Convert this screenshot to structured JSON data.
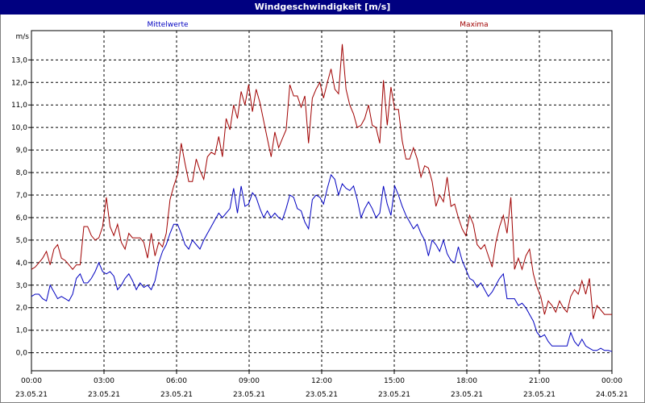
{
  "window": {
    "title": "Windgeschwindigkeit [m/s]"
  },
  "colors": {
    "titlebar": "#000080",
    "mean": "#0000c0",
    "max": "#a00000",
    "grid": "#000000"
  },
  "chart_data": {
    "type": "line",
    "title": "Windgeschwindigkeit [m/s]",
    "ylabel": "m/s",
    "xlabel": "",
    "ylim": [
      -0.8,
      14.3
    ],
    "xlim": [
      0,
      24
    ],
    "grid": true,
    "legend_placement": "top",
    "yticks": [
      "0,0",
      "1,0",
      "2,0",
      "3,0",
      "4,0",
      "5,0",
      "6,0",
      "7,0",
      "8,0",
      "9,0",
      "10,0",
      "11,0",
      "12,0",
      "13,0"
    ],
    "xticks": [
      {
        "time": "00:00",
        "date": "23.05.21"
      },
      {
        "time": "03:00",
        "date": "23.05.21"
      },
      {
        "time": "06:00",
        "date": "23.05.21"
      },
      {
        "time": "09:00",
        "date": "23.05.21"
      },
      {
        "time": "12:00",
        "date": "23.05.21"
      },
      {
        "time": "15:00",
        "date": "23.05.21"
      },
      {
        "time": "18:00",
        "date": "23.05.21"
      },
      {
        "time": "21:00",
        "date": "23.05.21"
      },
      {
        "time": "00:00",
        "date": "24.05.21"
      }
    ],
    "x_step_hours": 0.1667,
    "series": [
      {
        "name": "Mittelwerte",
        "color": "#0000c0",
        "values": [
          2.5,
          2.6,
          2.6,
          2.4,
          2.3,
          3.0,
          2.7,
          2.4,
          2.5,
          2.4,
          2.3,
          2.6,
          3.3,
          3.5,
          3.1,
          3.1,
          3.3,
          3.6,
          4.0,
          3.6,
          3.5,
          3.6,
          3.4,
          2.8,
          3.0,
          3.3,
          3.5,
          3.2,
          2.8,
          3.1,
          2.9,
          3.0,
          2.8,
          3.2,
          4.0,
          4.5,
          4.8,
          5.3,
          5.7,
          5.7,
          5.3,
          4.8,
          4.6,
          5.0,
          4.8,
          4.6,
          5.0,
          5.3,
          5.6,
          5.9,
          6.2,
          6.0,
          6.2,
          6.4,
          7.3,
          6.2,
          7.4,
          6.5,
          6.6,
          7.1,
          6.9,
          6.4,
          6.0,
          6.3,
          6.0,
          6.2,
          6.0,
          5.9,
          6.4,
          7.0,
          6.9,
          6.4,
          6.3,
          5.8,
          5.5,
          6.8,
          7.0,
          6.9,
          6.6,
          7.3,
          7.9,
          7.7,
          7.0,
          7.5,
          7.3,
          7.2,
          7.4,
          6.8,
          6.0,
          6.4,
          6.7,
          6.4,
          6.0,
          6.2,
          7.4,
          6.6,
          6.1,
          7.4,
          7.0,
          6.5,
          6.1,
          5.8,
          5.5,
          5.7,
          5.3,
          5.0,
          4.3,
          5.0,
          4.8,
          4.5,
          5.0,
          4.4,
          4.1,
          4.0,
          4.7,
          4.1,
          3.7,
          3.3,
          3.2,
          2.9,
          3.1,
          2.8,
          2.5,
          2.7,
          3.0,
          3.3,
          3.5,
          2.4,
          2.4,
          2.4,
          2.1,
          2.2,
          2.0,
          1.7,
          1.4,
          0.9,
          0.7,
          0.8,
          0.5,
          0.3,
          0.3,
          0.3,
          0.3,
          0.3,
          0.9,
          0.5,
          0.3,
          0.6,
          0.3,
          0.2,
          0.1,
          0.1,
          0.2,
          0.1,
          0.1,
          0.05
        ]
      },
      {
        "name": "Maxima",
        "color": "#a00000",
        "values": [
          3.7,
          3.8,
          4.0,
          4.2,
          4.5,
          3.9,
          4.6,
          4.8,
          4.2,
          4.1,
          3.9,
          3.7,
          3.9,
          3.9,
          5.6,
          5.6,
          5.2,
          5.0,
          5.1,
          5.6,
          6.9,
          5.6,
          5.2,
          5.7,
          4.9,
          4.6,
          5.3,
          5.1,
          5.1,
          5.1,
          4.9,
          4.2,
          5.3,
          4.3,
          4.9,
          4.7,
          5.3,
          6.8,
          7.4,
          7.9,
          9.3,
          8.4,
          7.6,
          7.6,
          8.6,
          8.1,
          7.7,
          8.7,
          8.9,
          8.8,
          9.6,
          8.7,
          10.4,
          9.9,
          11.0,
          10.4,
          11.6,
          11.0,
          11.9,
          10.7,
          11.7,
          11.1,
          10.3,
          9.5,
          8.7,
          9.8,
          9.1,
          9.5,
          9.9,
          11.9,
          11.4,
          11.4,
          10.9,
          11.4,
          9.3,
          11.3,
          11.7,
          12.0,
          11.3,
          12.0,
          12.6,
          11.7,
          11.5,
          13.7,
          11.7,
          11.0,
          10.6,
          10.0,
          10.1,
          10.4,
          11.0,
          10.1,
          10.0,
          9.3,
          12.1,
          10.1,
          11.8,
          10.8,
          10.8,
          9.4,
          8.6,
          8.6,
          9.1,
          8.6,
          7.8,
          8.3,
          8.2,
          7.6,
          6.5,
          7.0,
          6.7,
          7.8,
          6.5,
          6.6,
          6.0,
          5.5,
          5.2,
          6.1,
          5.7,
          4.8,
          4.6,
          4.8,
          4.3,
          3.8,
          4.9,
          5.6,
          6.1,
          5.3,
          6.9,
          3.7,
          4.2,
          3.7,
          4.3,
          4.6,
          3.5,
          2.9,
          2.5,
          1.7,
          2.3,
          2.1,
          1.8,
          2.3,
          2.0,
          1.8,
          2.5,
          2.8,
          2.6,
          3.2,
          2.6,
          3.3,
          1.5,
          2.1,
          1.9,
          1.7,
          1.7,
          1.7
        ]
      }
    ]
  }
}
